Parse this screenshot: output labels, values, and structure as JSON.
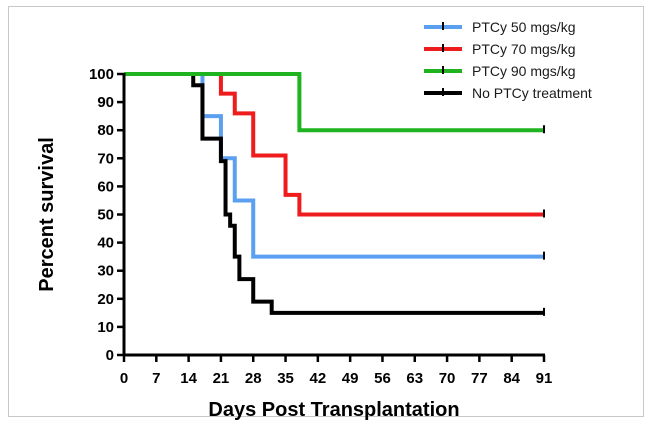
{
  "chart_data": {
    "type": "line",
    "step": true,
    "title": "",
    "xlabel": "Days Post Transplantation",
    "ylabel": "Percent survival",
    "xlim": [
      0,
      91
    ],
    "ylim": [
      0,
      100
    ],
    "xticks": [
      0,
      7,
      14,
      21,
      28,
      35,
      42,
      49,
      56,
      63,
      70,
      77,
      84,
      91
    ],
    "yticks": [
      0,
      10,
      20,
      30,
      40,
      50,
      60,
      70,
      80,
      90,
      100
    ],
    "grid": false,
    "legend": "top-right",
    "series": [
      {
        "name": "PTCy 50 mgs/kg",
        "color": "#5b9ff0",
        "x": [
          0,
          17,
          21,
          24,
          28,
          91
        ],
        "y": [
          100,
          85,
          70,
          55,
          35,
          35
        ]
      },
      {
        "name": "PTCy 70 mgs/kg",
        "color": "#ee1c1c",
        "x": [
          0,
          21,
          24,
          28,
          35,
          36,
          38,
          91
        ],
        "y": [
          100,
          93,
          86,
          71,
          57,
          57,
          50,
          50
        ]
      },
      {
        "name": "PTCy 90 mgs/kg",
        "color": "#1fb41f",
        "x": [
          0,
          38,
          91
        ],
        "y": [
          100,
          80,
          80
        ]
      },
      {
        "name": "No PTCy treatment",
        "color": "#000000",
        "x": [
          0,
          15,
          17,
          21,
          22,
          23,
          24,
          25,
          28,
          32,
          91
        ],
        "y": [
          100,
          96,
          77,
          69,
          50,
          46,
          35,
          27,
          19,
          15,
          15
        ]
      }
    ]
  }
}
